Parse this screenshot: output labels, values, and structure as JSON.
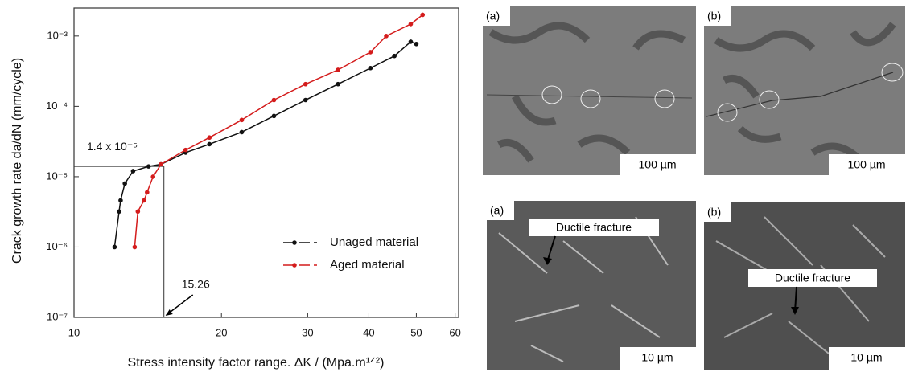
{
  "chart_data": {
    "type": "line",
    "xlabel": "Stress intensity factor range.  ΔK / (Mpa.m¹ᐟ²)",
    "ylabel": "Crack growth rate da/dN (mm/cycle)",
    "log_x": true,
    "log_y": true,
    "xlim": [
      10,
      61
    ],
    "ylim": [
      1e-07,
      0.0025
    ],
    "xticks": [
      10,
      20,
      30,
      40,
      50,
      60
    ],
    "yticks": [
      {
        "value": 1e-07,
        "label": "10⁻⁷"
      },
      {
        "value": 1e-06,
        "label": "10⁻⁶"
      },
      {
        "value": 1e-05,
        "label": "10⁻⁵"
      },
      {
        "value": 0.0001,
        "label": "10⁻⁴"
      },
      {
        "value": 0.001,
        "label": "10⁻³"
      }
    ],
    "legend": "lower right",
    "ref_x": 15.26,
    "ref_y": {
      "value": 1.4e-05,
      "label": "1.4 x 10⁻⁵"
    },
    "series": [
      {
        "name": "Unaged material",
        "color": "#111111",
        "x": [
          12.1,
          12.36,
          12.45,
          12.7,
          13.2,
          14.2,
          15.05,
          16.9,
          18.9,
          22.0,
          25.6,
          29.7,
          34.6,
          40.3,
          45.1,
          48.7,
          50.0
        ],
        "values": [
          1e-06,
          3.2e-06,
          4.6e-06,
          8e-06,
          1.2e-05,
          1.4e-05,
          1.5e-05,
          2.2e-05,
          2.9e-05,
          4.3e-05,
          7.3e-05,
          0.000123,
          0.000207,
          0.00035,
          0.00052,
          0.00083,
          0.00077
        ]
      },
      {
        "name": "Aged material",
        "color": "#d41c1c",
        "x": [
          13.3,
          13.5,
          13.9,
          14.1,
          14.5,
          15.05,
          16.9,
          18.9,
          22.0,
          25.6,
          29.7,
          34.6,
          40.3,
          43.4,
          48.7,
          51.5
        ],
        "values": [
          1e-06,
          3.2e-06,
          4.6e-06,
          6e-06,
          1e-05,
          1.5e-05,
          2.4e-05,
          3.6e-05,
          6.4e-05,
          0.000123,
          0.000207,
          0.00033,
          0.00059,
          0.001,
          0.00148,
          0.002
        ]
      }
    ]
  },
  "micrographs": [
    {
      "label": "(a)",
      "scale": "100 µm"
    },
    {
      "label": "(b)",
      "scale": "100 µm"
    },
    {
      "label": "(a)",
      "scale": "10 µm",
      "annotation": "Ductile fracture"
    },
    {
      "label": "(b)",
      "scale": "10 µm",
      "annotation": "Ductile fracture"
    }
  ]
}
